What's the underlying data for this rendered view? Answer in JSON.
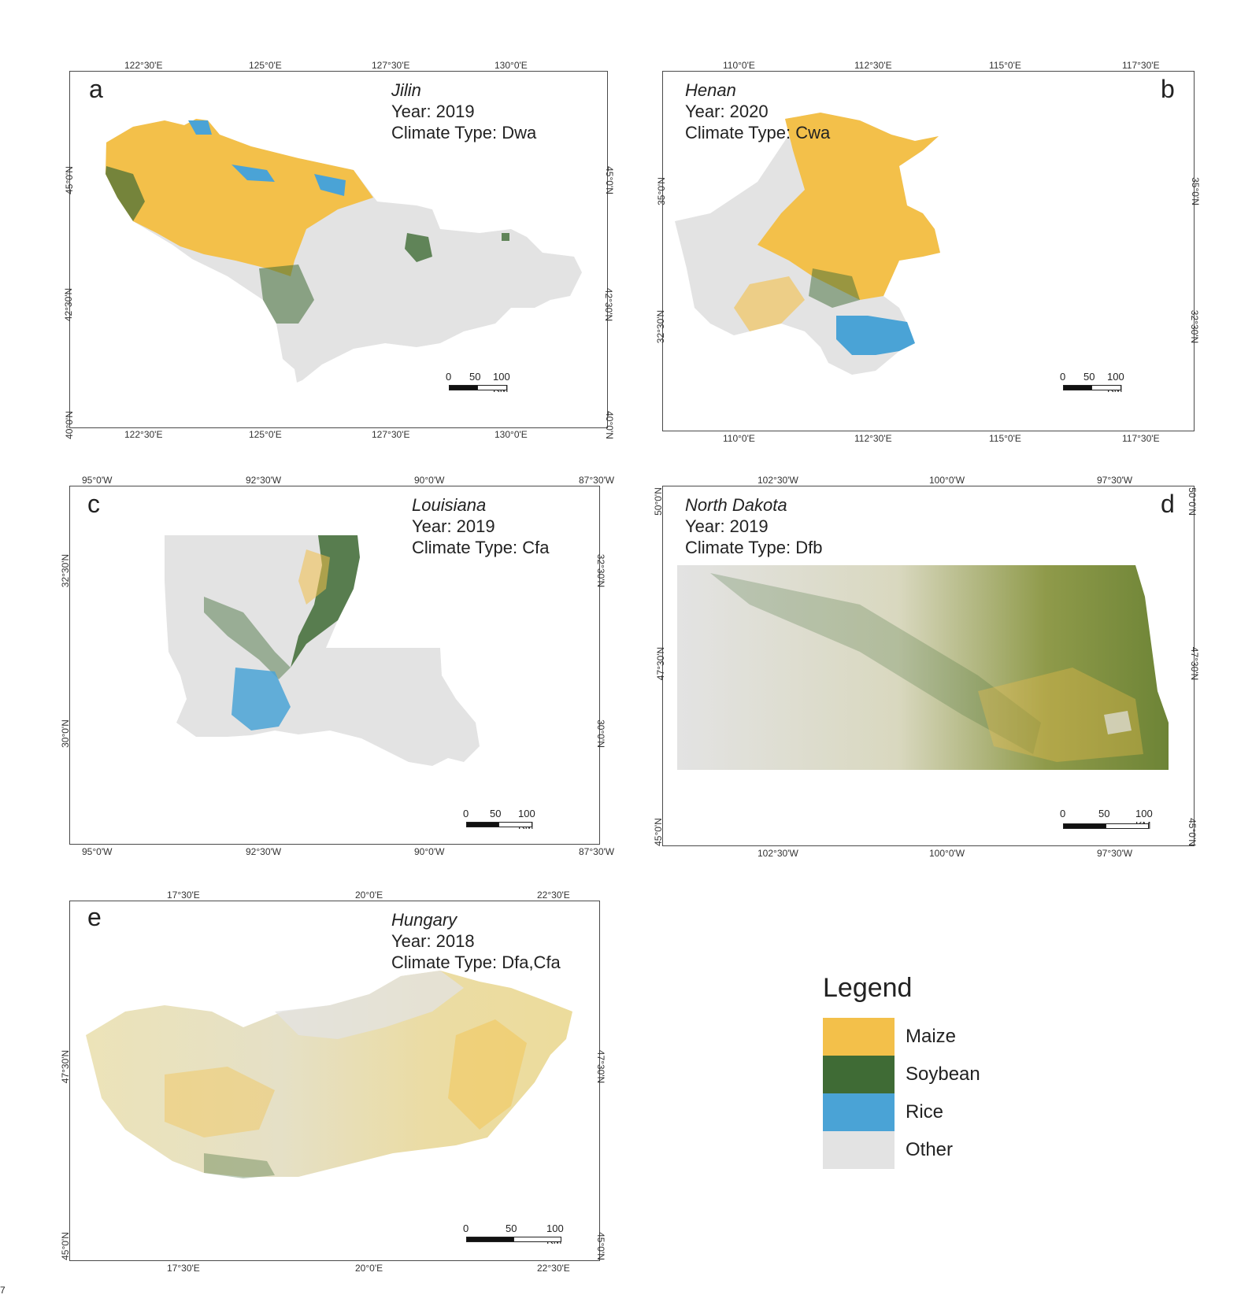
{
  "colors": {
    "maize": "#f3c04a",
    "soybean": "#3f6b35",
    "rice": "#4aa3d6",
    "other": "#e3e3e3",
    "frame": "#4a4a4a"
  },
  "panels": [
    {
      "letter": "a",
      "region": "Jilin",
      "year": "Year: 2019",
      "climate": "Climate Type: Dwa",
      "top_ticks": [
        "122°30'E",
        "125°0'E",
        "127°30'E",
        "130°0'E"
      ],
      "bottom_ticks": [
        "122°30'E",
        "125°0'E",
        "127°30'E",
        "130°0'E"
      ],
      "left_ticks": [
        "45°0'N",
        "42°30'N",
        "40°0'N"
      ],
      "right_ticks": [
        "45°0'N",
        "42°30'N",
        "40°0'N"
      ],
      "scale": [
        "0",
        "50",
        "100 KM"
      ]
    },
    {
      "letter": "b",
      "region": "Henan",
      "year": "Year: 2020",
      "climate": "Climate Type: Cwa",
      "top_ticks": [
        "110°0'E",
        "112°30'E",
        "115°0'E",
        "117°30'E"
      ],
      "bottom_ticks": [
        "110°0'E",
        "112°30'E",
        "115°0'E",
        "117°30'E"
      ],
      "left_ticks": [
        "35°0'N",
        "32°30'N"
      ],
      "right_ticks": [
        "35°0'N",
        "32°30'N"
      ],
      "scale": [
        "0",
        "50",
        "100 KM"
      ]
    },
    {
      "letter": "c",
      "region": "Louisiana",
      "year": "Year: 2019",
      "climate": "Climate Type: Cfa",
      "top_ticks": [
        "95°0'W",
        "92°30'W",
        "90°0'W",
        "87°30'W"
      ],
      "bottom_ticks": [
        "95°0'W",
        "92°30'W",
        "90°0'W",
        "87°30'W"
      ],
      "left_ticks": [
        "32°30'N",
        "30°0'N"
      ],
      "right_ticks": [
        "32°30'N",
        "30°0'N"
      ],
      "scale": [
        "0",
        "50",
        "100 KM"
      ]
    },
    {
      "letter": "d",
      "region": "North Dakota",
      "year": "Year: 2019",
      "climate": "Climate Type: Dfb",
      "top_ticks": [
        "102°30'W",
        "100°0'W",
        "97°30'W"
      ],
      "bottom_ticks": [
        "102°30'W",
        "100°0'W",
        "97°30'W"
      ],
      "left_ticks": [
        "50°0'N",
        "47°30'N",
        "45°0'N"
      ],
      "right_ticks": [
        "50°0'N",
        "47°30'N",
        "45°0'N"
      ],
      "scale": [
        "0",
        "50",
        "100 KM"
      ]
    },
    {
      "letter": "e",
      "region": "Hungary",
      "year": "Year: 2018",
      "climate": "Climate Type: Dfa,Cfa",
      "top_ticks": [
        "17°30'E",
        "20°0'E",
        "22°30'E"
      ],
      "bottom_ticks": [
        "17°30'E",
        "20°0'E",
        "22°30'E"
      ],
      "left_ticks": [
        "47°30'N",
        "45°0'N"
      ],
      "right_ticks": [
        "47°30'N",
        "45°0'N"
      ],
      "scale": [
        "0",
        "50",
        "100 KM"
      ]
    }
  ],
  "legend": {
    "title": "Legend",
    "items": [
      {
        "label": "Maize",
        "color": "#f3c04a"
      },
      {
        "label": "Soybean",
        "color": "#3f6b35"
      },
      {
        "label": "Rice",
        "color": "#4aa3d6"
      },
      {
        "label": "Other",
        "color": "#e3e3e3"
      }
    ]
  },
  "figure_number": "7"
}
